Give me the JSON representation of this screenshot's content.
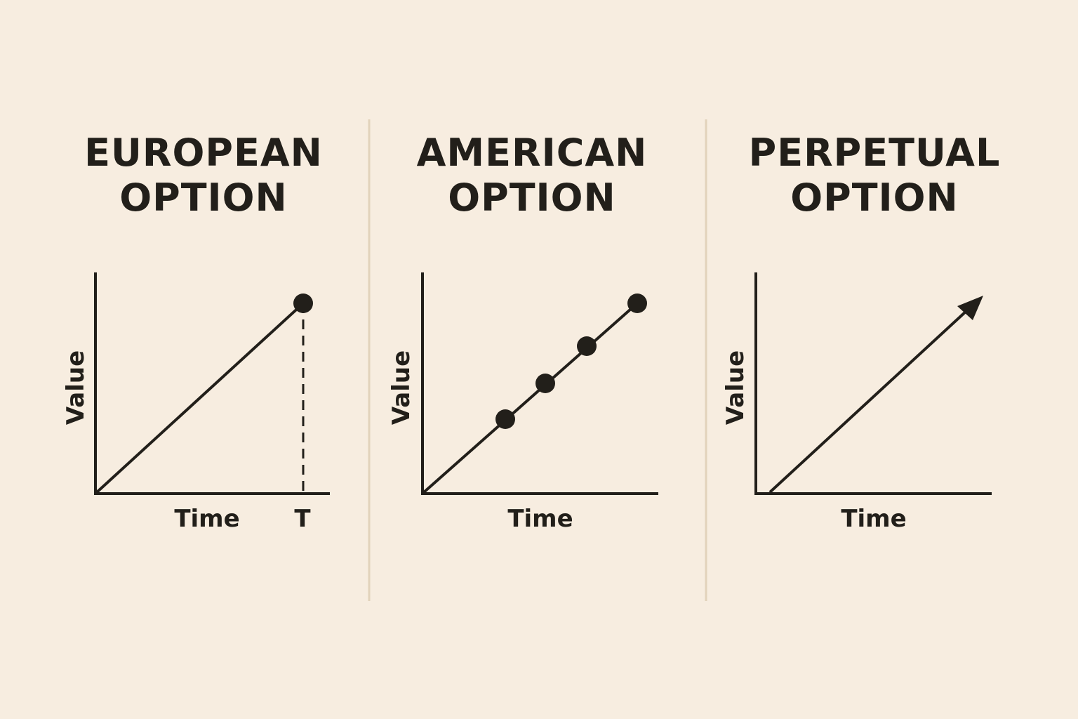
{
  "colors": {
    "background": "#f7ede0",
    "ink": "#221f1a",
    "divider": "#e2d3bb"
  },
  "panels": [
    {
      "title_line1": "EUROPEAN",
      "title_line2": "OPTION",
      "ylabel": "Value",
      "xlabel": "Time",
      "tick_label": "T",
      "kind": "single-exercise-at-maturity"
    },
    {
      "title_line1": "AMERICAN",
      "title_line2": "OPTION",
      "ylabel": "Value",
      "xlabel": "Time",
      "kind": "exercise-any-time",
      "exercise_points": 4
    },
    {
      "title_line1": "PERPETUAL",
      "title_line2": "OPTION",
      "ylabel": "Value",
      "xlabel": "Time",
      "kind": "no-expiry-arrow"
    }
  ]
}
